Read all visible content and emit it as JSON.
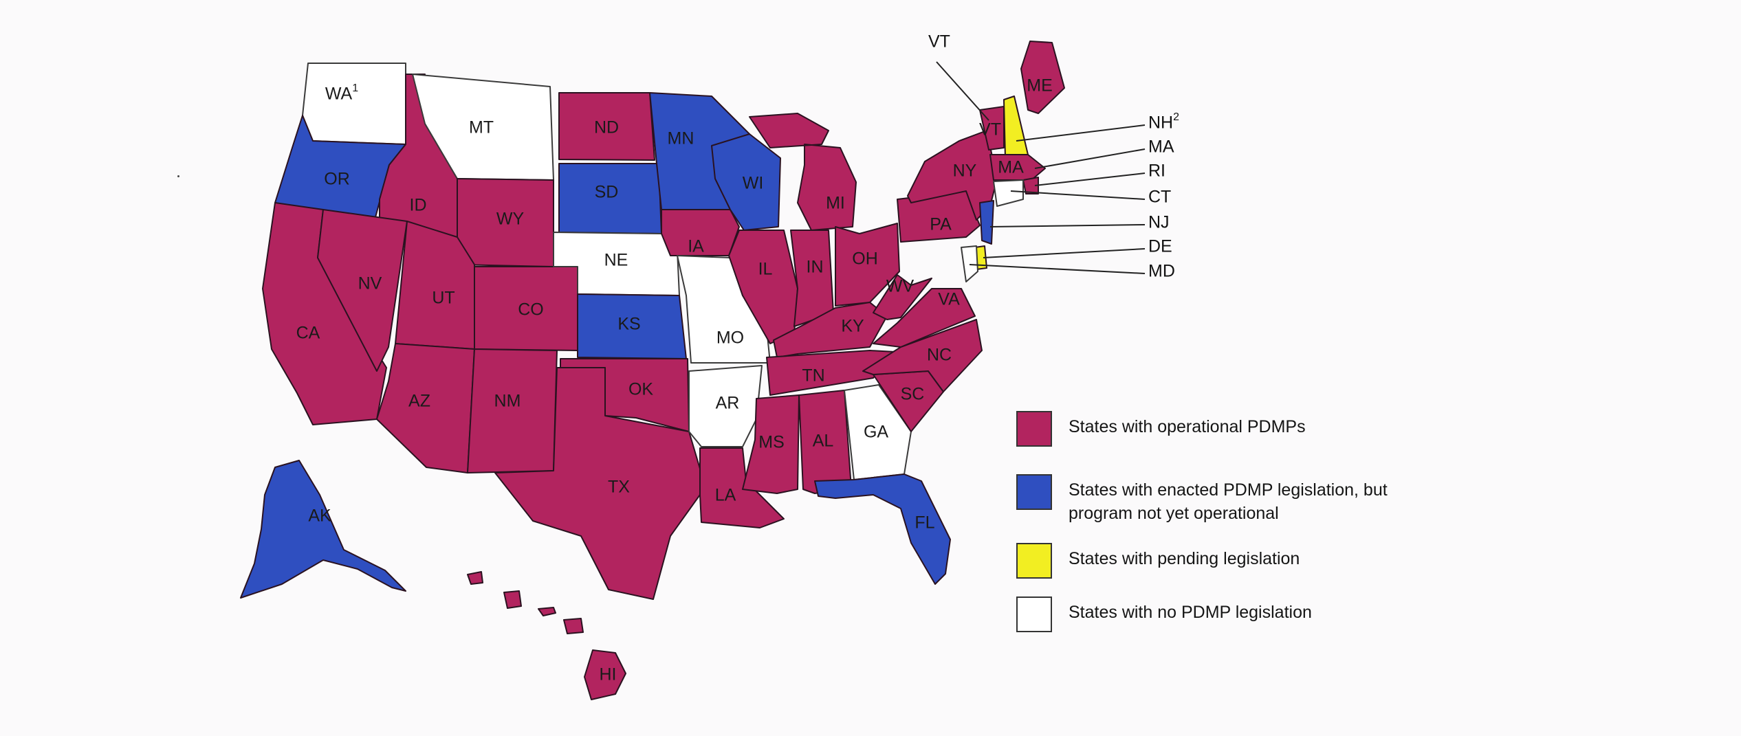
{
  "colors": {
    "operational": "#b2245f",
    "enacted": "#2f4fc0",
    "pending": "#f2ee22",
    "none": "#ffffff"
  },
  "states": {
    "WA": {
      "label": "WA",
      "sup": "1",
      "status": "none"
    },
    "OR": {
      "label": "OR",
      "status": "enacted"
    },
    "CA": {
      "label": "CA",
      "status": "operational"
    },
    "ID": {
      "label": "ID",
      "status": "operational"
    },
    "NV": {
      "label": "NV",
      "status": "operational"
    },
    "MT": {
      "label": "MT",
      "status": "none"
    },
    "WY": {
      "label": "WY",
      "status": "operational"
    },
    "UT": {
      "label": "UT",
      "status": "operational"
    },
    "AZ": {
      "label": "AZ",
      "status": "operational"
    },
    "CO": {
      "label": "CO",
      "status": "operational"
    },
    "NM": {
      "label": "NM",
      "status": "operational"
    },
    "ND": {
      "label": "ND",
      "status": "operational"
    },
    "SD": {
      "label": "SD",
      "status": "enacted"
    },
    "NE": {
      "label": "NE",
      "status": "none"
    },
    "KS": {
      "label": "KS",
      "status": "enacted"
    },
    "OK": {
      "label": "OK",
      "status": "operational"
    },
    "TX": {
      "label": "TX",
      "status": "operational"
    },
    "MN": {
      "label": "MN",
      "status": "enacted"
    },
    "IA": {
      "label": "IA",
      "status": "operational"
    },
    "MO": {
      "label": "MO",
      "status": "none"
    },
    "AR": {
      "label": "AR",
      "status": "none"
    },
    "LA": {
      "label": "LA",
      "status": "operational"
    },
    "WI": {
      "label": "WI",
      "status": "enacted"
    },
    "IL": {
      "label": "IL",
      "status": "operational"
    },
    "MI": {
      "label": "MI",
      "status": "operational"
    },
    "IN": {
      "label": "IN",
      "status": "operational"
    },
    "OH": {
      "label": "OH",
      "status": "operational"
    },
    "KY": {
      "label": "KY",
      "status": "operational"
    },
    "TN": {
      "label": "TN",
      "status": "operational"
    },
    "MS": {
      "label": "MS",
      "status": "operational"
    },
    "AL": {
      "label": "AL",
      "status": "operational"
    },
    "GA": {
      "label": "GA",
      "status": "none"
    },
    "FL": {
      "label": "FL",
      "status": "enacted"
    },
    "SC": {
      "label": "SC",
      "status": "operational"
    },
    "NC": {
      "label": "NC",
      "status": "operational"
    },
    "VA": {
      "label": "VA",
      "status": "operational"
    },
    "WV": {
      "label": "WV",
      "status": "operational"
    },
    "PA": {
      "label": "PA",
      "status": "operational"
    },
    "NY": {
      "label": "NY",
      "status": "operational"
    },
    "ME": {
      "label": "ME",
      "status": "operational"
    },
    "VT": {
      "label": "VT",
      "status": "operational"
    },
    "NH": {
      "label": "NH",
      "sup": "2",
      "status": "pending"
    },
    "MA": {
      "label": "MA",
      "status": "operational"
    },
    "RI": {
      "label": "RI",
      "status": "operational"
    },
    "CT": {
      "label": "CT",
      "status": "none"
    },
    "NJ": {
      "label": "NJ",
      "status": "enacted"
    },
    "DE": {
      "label": "DE",
      "status": "pending"
    },
    "MD": {
      "label": "MD",
      "status": "none"
    },
    "AK": {
      "label": "AK",
      "status": "enacted"
    },
    "HI": {
      "label": "HI",
      "status": "operational"
    }
  },
  "legend": [
    {
      "status": "operational",
      "text": "States with operational PDMPs"
    },
    {
      "status": "enacted",
      "text": "States with enacted PDMP legislation, but program not yet operational"
    },
    {
      "status": "pending",
      "text": "States with pending legislation"
    },
    {
      "status": "none",
      "text": "States with no PDMP legislation"
    }
  ]
}
